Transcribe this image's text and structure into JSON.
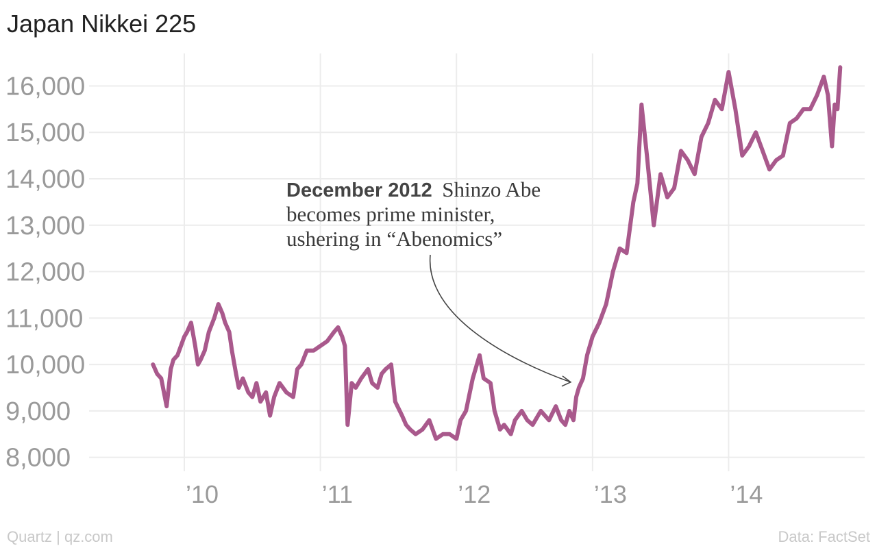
{
  "footer": {
    "credit": "Quartz | qz.com",
    "source": "Data: FactSet"
  },
  "annotation": {
    "bold": "December 2012",
    "line1": "Shinzo Abe",
    "line2": "becomes prime minister,",
    "line3": "ushering in “Abenomics”",
    "target_date": 2012.93,
    "target_value": 9650
  },
  "colors": {
    "series": "#a9598c",
    "grid": "#ececec",
    "tick_text": "#9a9a9a",
    "arrow": "#444444"
  },
  "chart_data": {
    "type": "line",
    "title": "Japan Nikkei 225",
    "xlabel": "",
    "ylabel": "",
    "ylim": [
      7700,
      16700
    ],
    "xlim": [
      2009.3,
      2015.0
    ],
    "y_ticks": [
      8000,
      9000,
      10000,
      11000,
      12000,
      13000,
      14000,
      15000,
      16000
    ],
    "y_tick_labels": [
      "8,000",
      "9,000",
      "10,000",
      "11,000",
      "12,000",
      "13,000",
      "14,000",
      "15,000",
      "16,000"
    ],
    "x_ticks": [
      2010,
      2011,
      2012,
      2013,
      2014
    ],
    "x_tick_labels": [
      "’10",
      "’11",
      "’12",
      "’13",
      "’14"
    ],
    "grid": true,
    "legend": "none",
    "series": [
      {
        "x": [
          2009.77,
          2009.8,
          2009.83,
          2009.87,
          2009.9,
          2009.92,
          2009.95,
          2010.0,
          2010.02,
          2010.05,
          2010.08,
          2010.1,
          2010.12,
          2010.15,
          2010.18,
          2010.22,
          2010.25,
          2010.28,
          2010.3,
          2010.33,
          2010.35,
          2010.38,
          2010.4,
          2010.43,
          2010.47,
          2010.5,
          2010.53,
          2010.56,
          2010.6,
          2010.63,
          2010.66,
          2010.7,
          2010.75,
          2010.8,
          2010.83,
          2010.86,
          2010.9,
          2010.95,
          2011.0,
          2011.05,
          2011.1,
          2011.13,
          2011.16,
          2011.18,
          2011.2,
          2011.23,
          2011.26,
          2011.3,
          2011.35,
          2011.38,
          2011.42,
          2011.45,
          2011.48,
          2011.52,
          2011.55,
          2011.6,
          2011.63,
          2011.66,
          2011.7,
          2011.75,
          2011.8,
          2011.85,
          2011.9,
          2011.95,
          2012.0,
          2012.03,
          2012.07,
          2012.12,
          2012.17,
          2012.2,
          2012.25,
          2012.28,
          2012.32,
          2012.35,
          2012.4,
          2012.43,
          2012.48,
          2012.52,
          2012.56,
          2012.62,
          2012.68,
          2012.73,
          2012.77,
          2012.8,
          2012.83,
          2012.86,
          2012.88,
          2012.9,
          2012.93,
          2012.96,
          2013.0,
          2013.05,
          2013.1,
          2013.15,
          2013.2,
          2013.25,
          2013.3,
          2013.33,
          2013.36,
          2013.4,
          2013.45,
          2013.5,
          2013.55,
          2013.6,
          2013.65,
          2013.7,
          2013.75,
          2013.8,
          2013.85,
          2013.9,
          2013.95,
          2014.0,
          2014.05,
          2014.1,
          2014.15,
          2014.2,
          2014.25,
          2014.3,
          2014.35,
          2014.4,
          2014.45,
          2014.5,
          2014.55,
          2014.6,
          2014.65,
          2014.7,
          2014.73,
          2014.76,
          2014.78,
          2014.8,
          2014.82
        ],
        "values": [
          10000,
          9800,
          9700,
          9100,
          9900,
          10100,
          10200,
          10600,
          10700,
          10900,
          10400,
          10000,
          10100,
          10300,
          10700,
          11000,
          11300,
          11100,
          10900,
          10700,
          10300,
          9800,
          9500,
          9700,
          9400,
          9300,
          9600,
          9200,
          9400,
          8900,
          9300,
          9600,
          9400,
          9300,
          9900,
          10000,
          10300,
          10300,
          10400,
          10500,
          10700,
          10800,
          10600,
          10400,
          8700,
          9600,
          9500,
          9700,
          9900,
          9600,
          9500,
          9800,
          9900,
          10000,
          9200,
          8900,
          8700,
          8600,
          8500,
          8600,
          8800,
          8400,
          8500,
          8500,
          8400,
          8800,
          9000,
          9700,
          10200,
          9700,
          9600,
          9000,
          8600,
          8700,
          8500,
          8800,
          9000,
          8800,
          8700,
          9000,
          8800,
          9100,
          8800,
          8700,
          9000,
          8800,
          9300,
          9500,
          9700,
          10200,
          10600,
          10900,
          11300,
          12000,
          12500,
          12400,
          13500,
          13900,
          15600,
          14500,
          13000,
          14100,
          13600,
          13800,
          14600,
          14400,
          14100,
          14900,
          15200,
          15700,
          15500,
          16300,
          15500,
          14500,
          14700,
          15000,
          14600,
          14200,
          14400,
          14500,
          15200,
          15300,
          15500,
          15500,
          15800,
          16200,
          15800,
          14700,
          15600,
          15500,
          16400
        ]
      }
    ]
  }
}
